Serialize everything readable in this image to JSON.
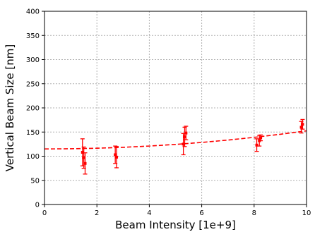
{
  "chart_data": {
    "type": "scatter",
    "title": "",
    "xlabel": "Beam Intensity [1e+9]",
    "ylabel": "Vertical Beam Size [nm]",
    "xlim": [
      0,
      10
    ],
    "ylim": [
      0,
      400
    ],
    "xticks": [
      0,
      2,
      4,
      6,
      8,
      10
    ],
    "yticks": [
      0,
      50,
      100,
      150,
      200,
      250,
      300,
      350,
      400
    ],
    "grid": true,
    "legend": "none",
    "colors": {
      "data": "#ff0000",
      "grid": "#b0b0b0",
      "axes": "#000000"
    },
    "series": [
      {
        "kind": "measurements-with-error-bars",
        "points": [
          {
            "x": 1.45,
            "y": 108,
            "err": 28
          },
          {
            "x": 1.5,
            "y": 97,
            "err": 22
          },
          {
            "x": 1.55,
            "y": 85,
            "err": 22
          },
          {
            "x": 2.7,
            "y": 103,
            "err": 18
          },
          {
            "x": 2.75,
            "y": 98,
            "err": 22
          },
          {
            "x": 5.3,
            "y": 125,
            "err": 22
          },
          {
            "x": 5.35,
            "y": 140,
            "err": 20
          },
          {
            "x": 5.4,
            "y": 148,
            "err": 14
          },
          {
            "x": 8.1,
            "y": 123,
            "err": 13
          },
          {
            "x": 8.2,
            "y": 132,
            "err": 11
          },
          {
            "x": 8.25,
            "y": 138,
            "err": 6
          },
          {
            "x": 9.8,
            "y": 160,
            "err": 12
          },
          {
            "x": 9.85,
            "y": 166,
            "err": 10
          }
        ]
      },
      {
        "kind": "fit-curve",
        "style": "dashed",
        "x": [
          0,
          1,
          2,
          3,
          4,
          5,
          6,
          7,
          8,
          9,
          10
        ],
        "y": [
          115,
          115.4,
          116.5,
          118.4,
          121,
          124.4,
          128.5,
          133.4,
          139,
          145.4,
          152.5
        ]
      }
    ]
  }
}
